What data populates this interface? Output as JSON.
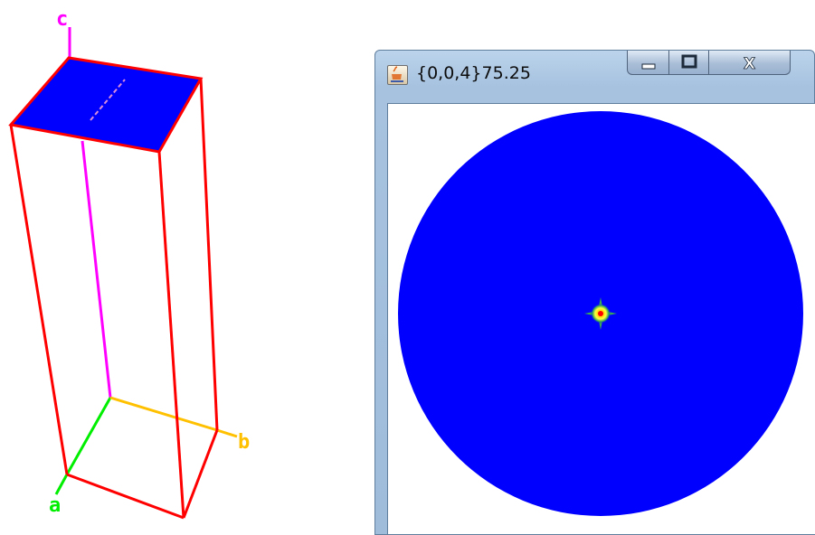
{
  "window": {
    "title": "{0,0,4}75.25",
    "minimize_icon": "minimize-icon",
    "maximize_icon": "maximize-icon",
    "close_icon": "close-icon",
    "app_icon": "java-cup-icon"
  },
  "scene3d": {
    "axis_labels": {
      "a": "a",
      "b": "b",
      "c": "c"
    },
    "colors": {
      "box_edges": "#ff0000",
      "top_face": "#0000ff",
      "axis_a": "#00ee00",
      "axis_b": "#ffc000",
      "axis_c": "#ff00ff"
    }
  },
  "plot": {
    "disc_color": "#0000ff",
    "background": "#ffffff",
    "center_spot_colors": [
      "#ff0000",
      "#ffff00",
      "#00aa66"
    ]
  }
}
